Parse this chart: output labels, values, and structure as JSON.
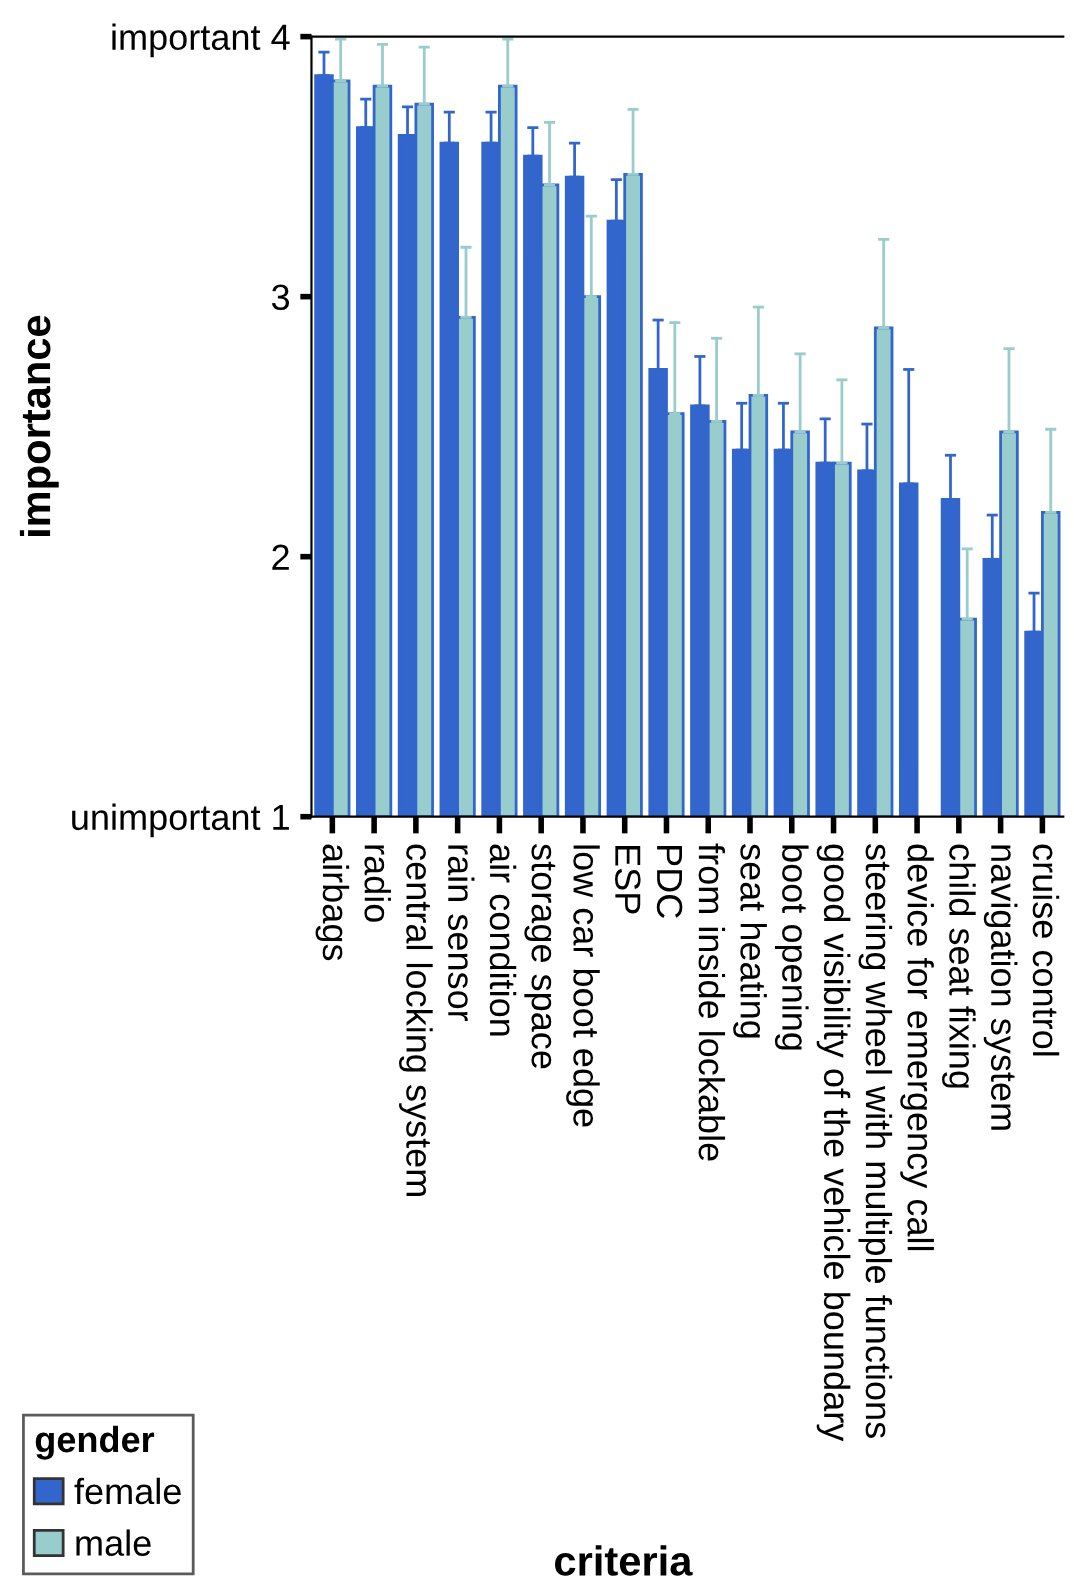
{
  "chart_data": {
    "type": "bar",
    "xlabel": "criteria",
    "ylabel": "importance",
    "legend_title": "gender",
    "legend": "bottom left",
    "grid": false,
    "categories": [
      "airbags",
      "radio",
      "central locking system",
      "rain sensor",
      "air condition",
      "storage space",
      "low car boot edge",
      "ESP",
      "PDC",
      "from inside lockable",
      "seat heating",
      "boot opening",
      "good visibility of the vehicle boundary",
      "steering wheel with multiple functions",
      "device for emergency call",
      "child seat fixing",
      "navigation system",
      "cruise control"
    ],
    "ylim": [
      1,
      4
    ],
    "yticks": [
      {
        "value": 1,
        "label": "unimportant 1"
      },
      2,
      3,
      {
        "value": 4,
        "label": "important 4"
      }
    ],
    "series": [
      {
        "name": "female",
        "color": "#3366cc",
        "values": [
          3.85,
          3.65,
          3.62,
          3.59,
          3.59,
          3.54,
          3.46,
          3.29,
          2.72,
          2.58,
          2.41,
          2.41,
          2.36,
          2.33,
          2.28,
          2.22,
          1.99,
          1.71
        ],
        "errors": [
          [
            3.85,
            3.94
          ],
          [
            3.65,
            3.76
          ],
          [
            3.62,
            3.73
          ],
          [
            3.59,
            3.71
          ],
          [
            3.59,
            3.71
          ],
          [
            3.54,
            3.65
          ],
          [
            3.46,
            3.59
          ],
          [
            3.29,
            3.45
          ],
          [
            2.72,
            2.91
          ],
          [
            2.58,
            2.77
          ],
          [
            2.41,
            2.59
          ],
          [
            2.41,
            2.59
          ],
          [
            2.36,
            2.53
          ],
          [
            2.33,
            2.51
          ],
          [
            2.28,
            2.72
          ],
          [
            2.22,
            2.39
          ],
          [
            1.99,
            2.16
          ],
          [
            1.71,
            1.86
          ]
        ]
      },
      {
        "name": "male",
        "color": "#99cccc",
        "values": [
          3.83,
          3.81,
          3.74,
          2.92,
          3.81,
          3.43,
          3.0,
          3.47,
          2.55,
          2.52,
          2.62,
          2.48,
          2.36,
          2.88,
          null,
          1.76,
          2.48,
          2.17
        ],
        "errors": [
          [
            3.83,
            3.99
          ],
          [
            3.81,
            3.97
          ],
          [
            3.74,
            3.96
          ],
          [
            2.92,
            3.19
          ],
          [
            3.81,
            3.99
          ],
          [
            3.43,
            3.67
          ],
          [
            3.0,
            3.31
          ],
          [
            3.47,
            3.72
          ],
          [
            2.55,
            2.9
          ],
          [
            2.52,
            2.84
          ],
          [
            2.62,
            2.96
          ],
          [
            2.48,
            2.78
          ],
          [
            2.36,
            2.68
          ],
          [
            2.88,
            3.22
          ],
          null,
          [
            1.76,
            2.03
          ],
          [
            2.48,
            2.8
          ],
          [
            2.17,
            2.49
          ]
        ]
      }
    ]
  }
}
